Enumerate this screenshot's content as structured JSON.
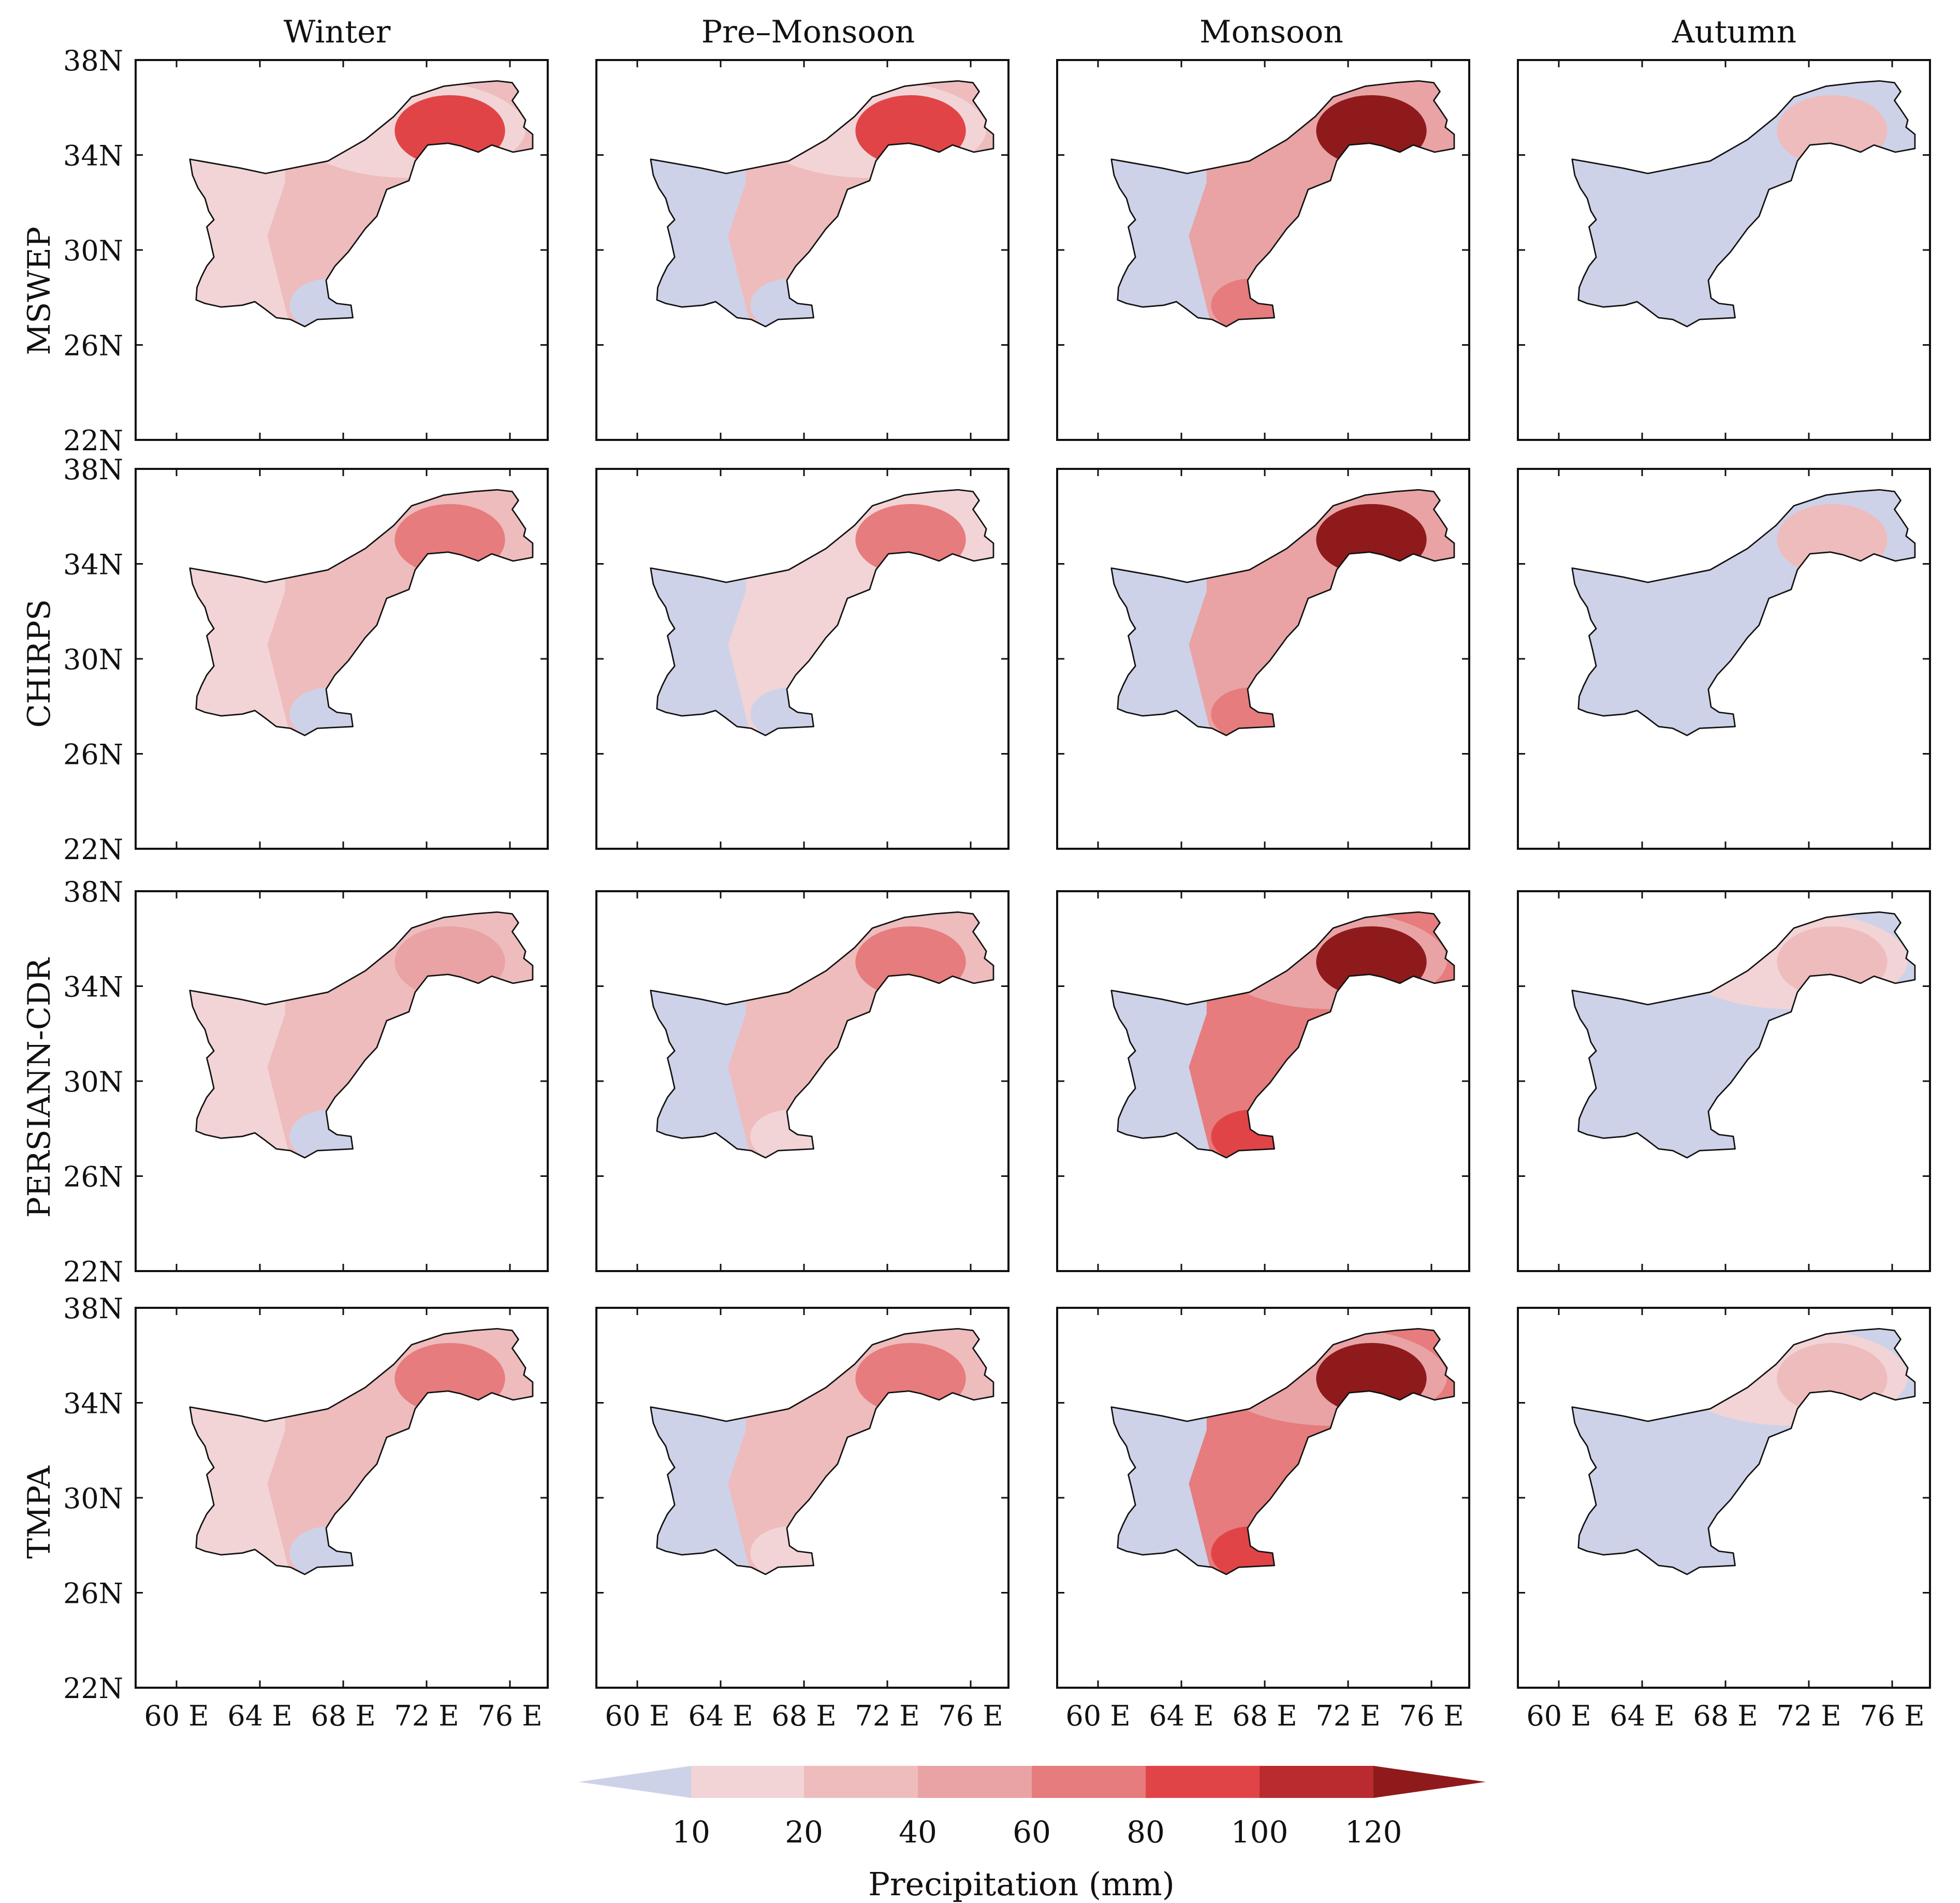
{
  "figure": {
    "seasons": [
      "Winter",
      "Pre–Monsoon",
      "Monsoon",
      "Autumn"
    ],
    "datasets": [
      "MSWEP",
      "CHIRPS",
      "PERSIANN-CDR",
      "TMPA"
    ],
    "lat_ticks": [
      "38N",
      "34N",
      "30N",
      "26N",
      "22N"
    ],
    "lon_ticks": [
      "60 E",
      "64 E",
      "68 E",
      "72 E",
      "76 E"
    ],
    "colorbar": {
      "label": "Precipitation (mm)",
      "tick_labels": [
        "10",
        "20",
        "40",
        "60",
        "80",
        "100",
        "120"
      ],
      "colors": [
        "#cdd2e8",
        "#f2d4d6",
        "#eebcbd",
        "#e9a3a4",
        "#e67c7d",
        "#e14447",
        "#b92b2e",
        "#8f1a1c"
      ]
    },
    "panel_levels": [
      [
        {
          "nw": 1,
          "ne": 5,
          "c": 2,
          "sw": 1,
          "s": 0
        },
        {
          "nw": 1,
          "ne": 5,
          "c": 2,
          "sw": 0,
          "s": 0
        },
        {
          "nw": 3,
          "ne": 7,
          "c": 3,
          "sw": 0,
          "s": 4
        },
        {
          "nw": 0,
          "ne": 2,
          "c": 0,
          "sw": 0,
          "s": 0
        }
      ],
      [
        {
          "nw": 2,
          "ne": 4,
          "c": 2,
          "sw": 1,
          "s": 0
        },
        {
          "nw": 1,
          "ne": 4,
          "c": 1,
          "sw": 0,
          "s": 0
        },
        {
          "nw": 3,
          "ne": 7,
          "c": 3,
          "sw": 0,
          "s": 4
        },
        {
          "nw": 0,
          "ne": 2,
          "c": 0,
          "sw": 0,
          "s": 0
        }
      ],
      [
        {
          "nw": 2,
          "ne": 3,
          "c": 2,
          "sw": 1,
          "s": 0
        },
        {
          "nw": 2,
          "ne": 4,
          "c": 2,
          "sw": 0,
          "s": 1
        },
        {
          "nw": 3,
          "ne": 7,
          "c": 4,
          "sw": 0,
          "s": 5
        },
        {
          "nw": 1,
          "ne": 2,
          "c": 0,
          "sw": 0,
          "s": 0
        }
      ],
      [
        {
          "nw": 2,
          "ne": 4,
          "c": 2,
          "sw": 1,
          "s": 0
        },
        {
          "nw": 2,
          "ne": 4,
          "c": 2,
          "sw": 0,
          "s": 1
        },
        {
          "nw": 3,
          "ne": 7,
          "c": 4,
          "sw": 0,
          "s": 5
        },
        {
          "nw": 1,
          "ne": 2,
          "c": 0,
          "sw": 0,
          "s": 0
        }
      ]
    ]
  }
}
